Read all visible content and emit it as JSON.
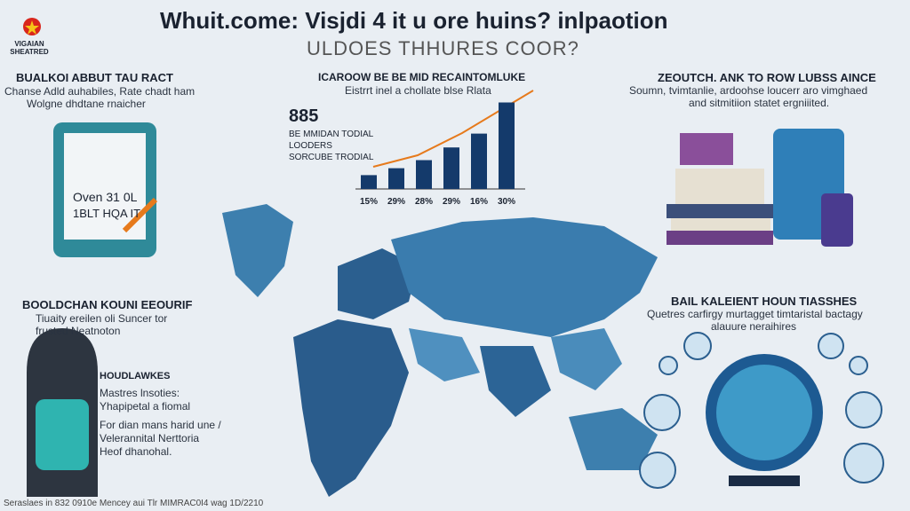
{
  "header": {
    "title": "Whuit.come: Visjdi 4 it u ore huins? inlpaotion",
    "subtitle": "ULDOES THHURES COOR?",
    "logo": "VIGAIAN SHEATRED"
  },
  "panels": {
    "top_left": {
      "heading": "BUALKOI ABBUT TAU RACT",
      "lines": [
        "Chanse Adld auhabiles, Rate chadt ham",
        "Wolgne dhdtane rnaicher"
      ],
      "tablet": [
        "Oven 31 0L",
        "1BLT HQA IT"
      ]
    },
    "top_middle": {
      "heading": "ICAROOW BE BE MID RECAINTOMLUKE",
      "lines": [
        "Eistrrt inel a chollate blse Rlata"
      ],
      "big_number": "885",
      "notes": [
        "BE MMIDAN TODIAL",
        "LOODERS",
        "SORCUBE TRODIAL"
      ]
    },
    "top_right": {
      "heading": "ZEOUTCH. ANK TO ROW LUBSS AINCE",
      "lines": [
        "Soumn, tvimtanlie, ardoohse loucerr aro vimghaed",
        "and sitmitiion statet ergniiited."
      ]
    },
    "mid_left": {
      "heading": "BOOLDCHAN KOUNI EEOURIF",
      "lines": [
        "Tiuaity ereilen oli Suncer tor",
        "frusted Neatnoton"
      ],
      "sub_heading": "HOUDLAWKES",
      "sub_lines": [
        "Mastres lnsoties:",
        "Yhapipetal a fiomal",
        "For dian mans harid une /",
        "Velerannital Nerttoria",
        "Heof dhanohal."
      ]
    },
    "mid_right": {
      "heading": "BAIL KALEIENT HOUN TIASSHES",
      "lines": [
        "Quetres carfirgy murtagget timtaristal bactagy",
        "alauure neraihires"
      ]
    }
  },
  "chart_data": {
    "type": "bar",
    "categories": [
      "15%",
      "29%",
      "28%",
      "29%",
      "16%",
      "30%"
    ],
    "values": [
      12,
      18,
      25,
      36,
      48,
      75
    ],
    "color": "#143a6b"
  },
  "footer": "Seraslaes in 832 0910e Mencey aui Tlr MIMRAC0I4 wag 1D/2210"
}
